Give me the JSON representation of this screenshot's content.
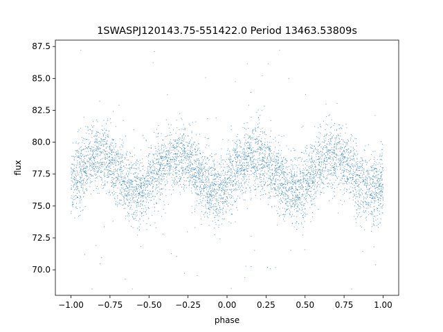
{
  "chart_data": {
    "type": "scatter",
    "title": "1SWASPJ120143.75-551422.0 Period 13463.53809s",
    "xlabel": "phase",
    "ylabel": "flux",
    "xlim": [
      -1.1,
      1.1
    ],
    "ylim": [
      68.0,
      88.0
    ],
    "xticks": [
      -1.0,
      -0.75,
      -0.5,
      -0.25,
      0.0,
      0.25,
      0.5,
      0.75,
      1.0
    ],
    "xtick_labels": [
      "−1.00",
      "−0.75",
      "−0.50",
      "−0.25",
      "0.00",
      "0.25",
      "0.50",
      "0.75",
      "1.00"
    ],
    "yticks": [
      70.0,
      72.5,
      75.0,
      77.5,
      80.0,
      82.5,
      85.0,
      87.5
    ],
    "ytick_labels": [
      "70.0",
      "72.5",
      "75.0",
      "77.5",
      "80.0",
      "82.5",
      "85.0",
      "87.5"
    ],
    "grid": false,
    "marker_color": "#1f77b4",
    "series": [
      {
        "points_description": "folded light curve, phase -1 to 1, ~16000 points",
        "x_range": [
          -1.0,
          1.0
        ],
        "mean_flux": 77.6,
        "flux_spread_sd": 1.3,
        "modulation": {
          "peaks_at_phase": [
            -0.82,
            -0.32,
            0.18,
            0.68
          ],
          "peak_flux": 79.2,
          "troughs_at_phase": [
            -0.57,
            -0.07,
            0.43,
            0.93
          ],
          "trough_flux": 76.6
        },
        "outlier_range": [
          68.5,
          87.2
        ]
      }
    ]
  }
}
